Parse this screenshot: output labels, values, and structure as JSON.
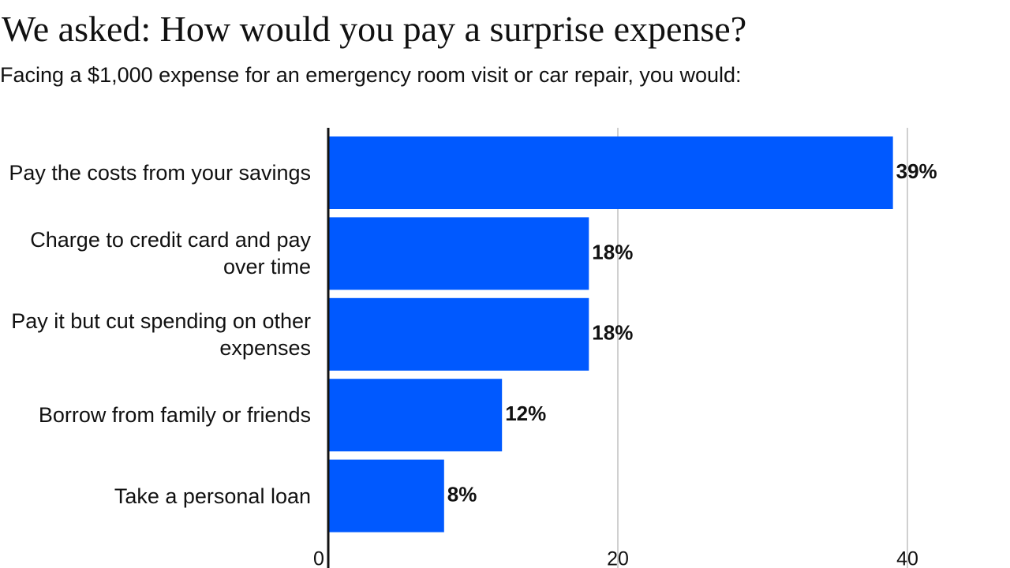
{
  "chart_data": {
    "type": "barh",
    "title": "We asked: How would you pay a surprise expense?",
    "subtitle": "Facing a $1,000 expense for an emergency room visit or car repair, you would:",
    "categories": [
      "Pay the costs from your savings",
      "Charge to credit card and pay over time",
      "Pay it but cut spending on other expenses",
      "Borrow from family or friends",
      "Take a personal loan"
    ],
    "values": [
      39,
      18,
      18,
      12,
      8
    ],
    "value_labels": [
      "39%",
      "18%",
      "18%",
      "12%",
      "8%"
    ],
    "color": "#0059ff",
    "xlim": [
      0,
      40
    ],
    "xticks": [
      0,
      20,
      40
    ],
    "grid": true
  }
}
